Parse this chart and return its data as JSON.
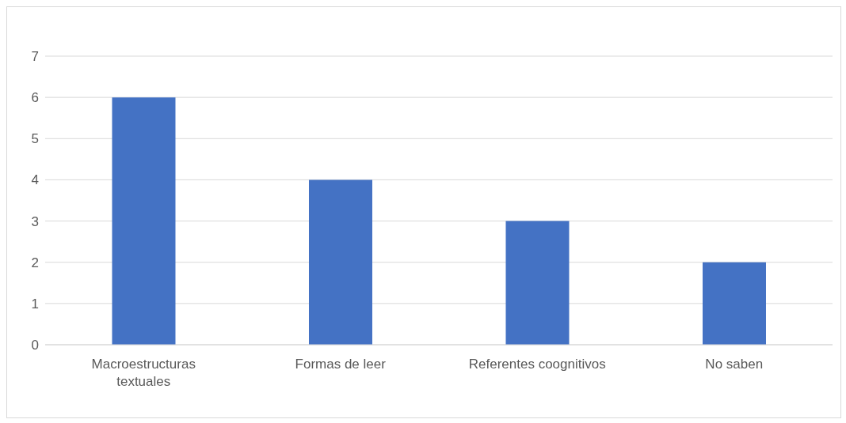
{
  "chart_data": {
    "type": "bar",
    "categories": [
      "Macroestructuras textuales",
      "Formas de leer",
      "Referentes coognitivos",
      "No saben"
    ],
    "values": [
      6,
      4,
      3,
      2
    ],
    "color": "#4472c4",
    "ylim": [
      0,
      7
    ],
    "yticks": [
      0,
      1,
      2,
      3,
      4,
      5,
      6,
      7
    ],
    "grid": "y"
  }
}
